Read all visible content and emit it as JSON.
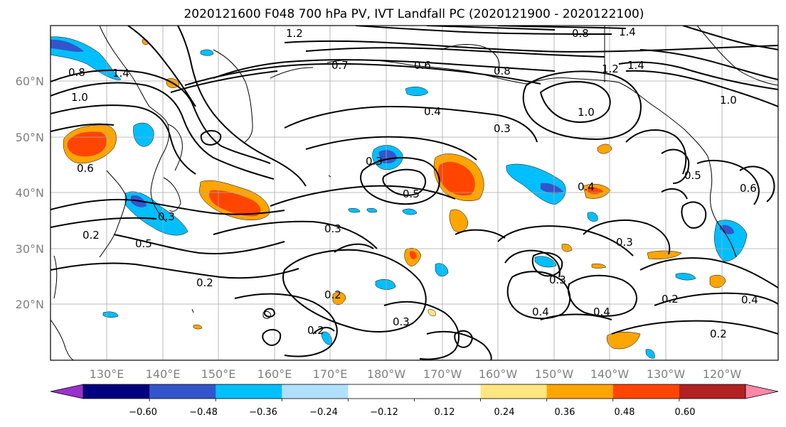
{
  "title": "2020121600 F048 700 hPa PV, IVT Landfall PC (2020121900 - 2020122100)",
  "lat_labels": [
    "60°N",
    "50°N",
    "40°N",
    "30°N",
    "20°N"
  ],
  "lon_labels": [
    "130°E",
    "140°E",
    "150°E",
    "160°E",
    "170°E",
    "180°W",
    "170°W",
    "160°W",
    "150°W",
    "140°W",
    "130°W",
    "120°W"
  ],
  "colorbar": {
    "colors": [
      "#9932cc",
      "#000080",
      "#3355cc",
      "#00bfff",
      "#b0e0ff",
      "#ffffff",
      "#ffffff",
      "#ffe680",
      "#ffa500",
      "#ff4500",
      "#b22222",
      "#ff88aa"
    ],
    "tick_labels": [
      "−0.60",
      "−0.48",
      "−0.36",
      "−0.24",
      "−0.12",
      "0.12",
      "0.24",
      "0.36",
      "0.48",
      "0.60"
    ]
  },
  "contour_labels": [
    "1.2",
    "0.8",
    "1.4",
    "1.0",
    "0.7",
    "0.6",
    "0.8",
    "1.2",
    "1.4",
    "0.4",
    "0.3",
    "1.0",
    "1.0",
    "0.8",
    "1.4",
    "0.6",
    "0.3",
    "0.5",
    "0.4",
    "0.5",
    "0.6",
    "0.3",
    "0.3",
    "0.5",
    "0.2",
    "0.3",
    "0.3",
    "0.2",
    "0.2",
    "0.3",
    "0.4",
    "0.4",
    "0.2",
    "0.4",
    "0.2",
    "0.2"
  ],
  "colors": {
    "axis": "#000000",
    "grid": "#a9a9a9",
    "tick_text": "#808080",
    "coast": "#000000",
    "contour": "#000000"
  }
}
